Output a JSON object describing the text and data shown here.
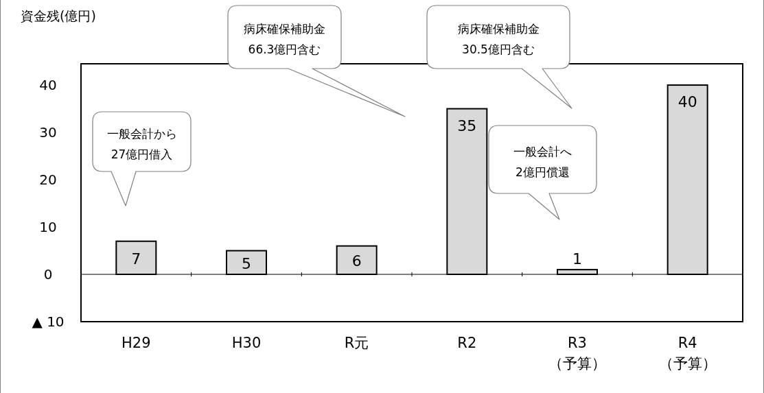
{
  "chart_data": {
    "type": "bar",
    "ylabel": "資金残(億円)",
    "categories": [
      "H29",
      "H30",
      "R元",
      "R2",
      "R3\n（予算）",
      "R4\n（予算）"
    ],
    "values": [
      7,
      5,
      6,
      35,
      1,
      40
    ],
    "color": "#d9d9d9",
    "ylim": [
      -10,
      44.5
    ],
    "yticks": [
      {
        "value": -10,
        "label": "▲ 10"
      },
      0,
      10,
      20,
      30,
      40
    ],
    "data_labels": true,
    "annotations": [
      "一般会計から\n27億円借入",
      "病床確保補助金\n66.3億円含む",
      "一般会計へ\n2億円償還",
      "病床確保補助金\n30.5億円含む"
    ]
  }
}
